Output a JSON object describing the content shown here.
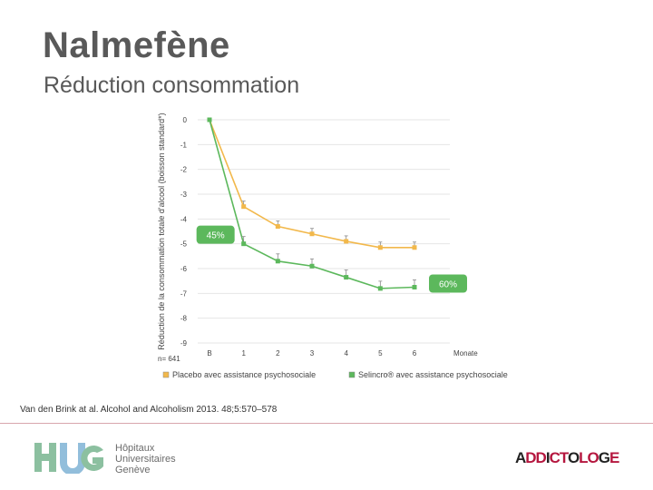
{
  "slide": {
    "title": "Nalmefène",
    "subtitle": "Réduction consommation",
    "citation": "Van den Brink at al. Alcohol and Alcoholism 2013. 48;5:570–578"
  },
  "footer": {
    "hug_lines": [
      "Hôpitaux",
      "Universitaires",
      "Genève"
    ],
    "addicto": [
      "A",
      "DD",
      "I",
      "CT",
      "O",
      "LO",
      "G",
      "E"
    ]
  },
  "colors": {
    "placebo": "#f2b84b",
    "selincro": "#5cb85c",
    "grid": "#e6e6e6",
    "badge": "#5cb85c",
    "hug_blue": "#7fb3d5",
    "hug_green": "#8cc0a0"
  },
  "chart_data": {
    "type": "line",
    "ylabel": "Réduction de la consommation totale d'alcool (boisson standard*)",
    "xlabel_right": "Monate",
    "sample_note": "n= 641",
    "categories": [
      "B",
      "1",
      "2",
      "3",
      "4",
      "5",
      "6"
    ],
    "y_ticks": [
      "0",
      "-1",
      "-2",
      "-3",
      "-4",
      "-5",
      "-6",
      "-7",
      "-8",
      "-9"
    ],
    "ylim": [
      -9,
      0
    ],
    "grid": true,
    "legend_position": "bottom",
    "series": [
      {
        "name": "Placebo avec assistance psychosociale",
        "color_key": "placebo",
        "values": [
          0,
          -3.5,
          -4.3,
          -4.6,
          -4.9,
          -5.15,
          -5.15
        ]
      },
      {
        "name": "Selincro® avec assistance psychosociale",
        "color_key": "selincro",
        "values": [
          0,
          -5.0,
          -5.7,
          -5.9,
          -6.35,
          -6.8,
          -6.75
        ]
      }
    ],
    "annotations": [
      {
        "text": "45%",
        "series": 1,
        "index": 1
      },
      {
        "text": "60%",
        "series": 1,
        "index": 6
      }
    ]
  }
}
